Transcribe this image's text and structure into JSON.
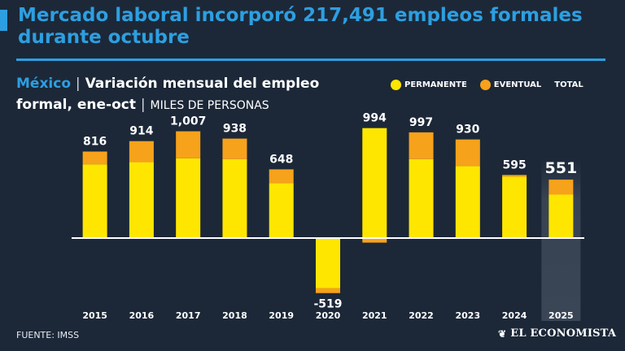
{
  "header": {
    "headline": "Mercado laboral incorporó 217,491 empleos formales durante octubre"
  },
  "subtitle": {
    "country": "México",
    "separator": "|",
    "title": "Variación mensual del empleo formal, ene-oct",
    "units": "MILES DE PERSONAS"
  },
  "legend": {
    "permanent": "PERMANENTE",
    "eventual": "EVENTUAL",
    "total": "TOTAL"
  },
  "colors": {
    "background": "#1c2838",
    "accent": "#2d9fe0",
    "permanent": "#ffe600",
    "eventual": "#f7a21b",
    "highlight_column": "#3a4656"
  },
  "chart_data": {
    "type": "bar",
    "stacked": true,
    "title": "Variación mensual del empleo formal, ene-oct",
    "ylabel": "Miles de personas",
    "categories": [
      "2015",
      "2016",
      "2017",
      "2018",
      "2019",
      "2020",
      "2021",
      "2022",
      "2023",
      "2024",
      "2025"
    ],
    "series": [
      {
        "name": "PERMANENTE",
        "values": [
          696,
          716,
          752,
          744,
          518,
          -474,
          1037,
          745,
          679,
          579,
          410
        ]
      },
      {
        "name": "EVENTUAL",
        "values": [
          120,
          198,
          255,
          194,
          130,
          -45,
          -43,
          252,
          251,
          16,
          141
        ]
      }
    ],
    "totals": [
      "816",
      "914",
      "1,007",
      "938",
      "648",
      "-519",
      "994",
      "997",
      "930",
      "595",
      "551"
    ],
    "total_values": [
      816,
      914,
      1007,
      938,
      648,
      -519,
      994,
      997,
      930,
      595,
      551
    ],
    "highlight": "2025",
    "ylim": [
      -560,
      1100
    ]
  },
  "footer": {
    "source": "FUENTE: IMSS",
    "brand": "EL ECONOMISTA",
    "brand_icon": "leaf-icon"
  }
}
